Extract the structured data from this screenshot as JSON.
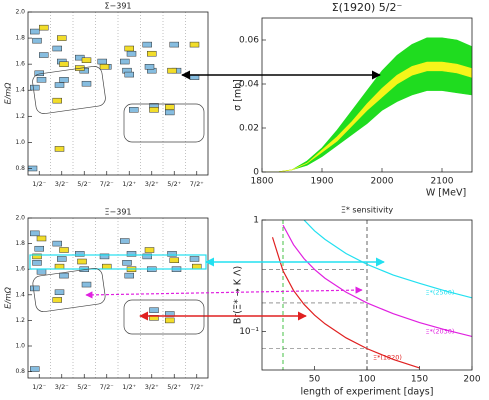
{
  "chart_data": [
    {
      "type": "scatter",
      "title": "Σ−391",
      "y_label": "E/mΩ",
      "xlim": [
        0,
        8
      ],
      "ylim": [
        0.75,
        2.0
      ],
      "xticks": [
        {
          "value": 0.5,
          "label": "1/2⁻"
        },
        {
          "value": 1.5,
          "label": "3/2⁻"
        },
        {
          "value": 2.5,
          "label": "5/2⁻"
        },
        {
          "value": 3.5,
          "label": "7/2⁻"
        },
        {
          "value": 4.5,
          "label": "1/2⁺"
        },
        {
          "value": 5.5,
          "label": "3/2⁺"
        },
        {
          "value": 6.5,
          "label": "5/2⁺"
        },
        {
          "value": 7.5,
          "label": "7/2⁺"
        }
      ],
      "yticks": [
        {
          "value": 0.8,
          "label": "0.8"
        },
        {
          "value": 1.0,
          "label": "1.0"
        },
        {
          "value": 1.2,
          "label": "1.2"
        },
        {
          "value": 1.4,
          "label": "1.4"
        },
        {
          "value": 1.6,
          "label": "1.6"
        },
        {
          "value": 1.8,
          "label": "1.8"
        },
        {
          "value": 2.0,
          "label": "2.0"
        }
      ],
      "series": [
        {
          "color": "#86bde0",
          "x": [
            0.3,
            0.4,
            0.5,
            0.6,
            0.3,
            0.7,
            1.3,
            1.5,
            1.6,
            1.4,
            2.3,
            2.5,
            2.6,
            3.3,
            3.5,
            4.3,
            4.4,
            4.5,
            4.6,
            4.7,
            5.3,
            5.5,
            5.6,
            5.4,
            6.5,
            6.3,
            6.6,
            7.4,
            0.2
          ],
          "values": [
            1.85,
            1.78,
            1.53,
            1.48,
            1.42,
            1.67,
            1.72,
            1.62,
            1.48,
            1.44,
            1.65,
            1.55,
            1.45,
            1.62,
            1.58,
            1.62,
            1.55,
            1.52,
            1.68,
            1.25,
            1.75,
            1.55,
            1.28,
            1.58,
            1.75,
            1.23,
            1.55,
            1.5,
            0.8
          ]
        },
        {
          "color": "#f2dd2a",
          "x": [
            0.7,
            1.5,
            1.6,
            2.3,
            2.6,
            1.3,
            1.4,
            3.4,
            4.5,
            5.5,
            5.6,
            6.4,
            7.4,
            6.3
          ],
          "values": [
            1.88,
            1.8,
            1.6,
            1.57,
            1.63,
            1.32,
            0.95,
            1.58,
            1.72,
            1.68,
            1.25,
            1.55,
            1.75,
            1.27
          ]
        }
      ]
    },
    {
      "type": "area",
      "title": "Σ(1920) 5/2⁻",
      "x_label": "W [MeV]",
      "y_label": "σ [mb]",
      "xlim": [
        1800,
        2150
      ],
      "ylim": [
        0,
        0.07
      ],
      "xticks": [
        1800,
        1900,
        2000,
        2100
      ],
      "yticks": [
        0,
        0.02,
        0.04,
        0.06
      ],
      "x": [
        1800,
        1825,
        1850,
        1875,
        1900,
        1925,
        1950,
        1975,
        2000,
        2025,
        2050,
        2075,
        2100,
        2125,
        2150
      ],
      "bands": [
        {
          "color": "#1fdc1f",
          "upper": [
            0,
            0,
            0.001,
            0.005,
            0.011,
            0.019,
            0.028,
            0.037,
            0.046,
            0.053,
            0.058,
            0.061,
            0.061,
            0.06,
            0.057
          ],
          "lower": [
            0,
            0,
            0.001,
            0.003,
            0.007,
            0.012,
            0.017,
            0.022,
            0.028,
            0.032,
            0.035,
            0.037,
            0.037,
            0.036,
            0.035
          ]
        },
        {
          "color": "#f5f51a",
          "upper": [
            0,
            0,
            0.001,
            0.004,
            0.01,
            0.016,
            0.023,
            0.031,
            0.038,
            0.044,
            0.048,
            0.05,
            0.05,
            0.049,
            0.047
          ],
          "lower": [
            0,
            0,
            0.001,
            0.004,
            0.009,
            0.014,
            0.021,
            0.028,
            0.034,
            0.04,
            0.044,
            0.046,
            0.046,
            0.045,
            0.043
          ]
        }
      ]
    },
    {
      "type": "scatter",
      "title": "Ξ−391",
      "y_label": "E/mΩ",
      "xlim": [
        0,
        8
      ],
      "ylim": [
        0.75,
        2.0
      ],
      "xticks": [
        {
          "value": 0.5,
          "label": "1/2⁻"
        },
        {
          "value": 1.5,
          "label": "3/2⁻"
        },
        {
          "value": 2.5,
          "label": "5/2⁻"
        },
        {
          "value": 3.5,
          "label": "7/2⁻"
        },
        {
          "value": 4.5,
          "label": "1/2⁺"
        },
        {
          "value": 5.5,
          "label": "3/2⁺"
        },
        {
          "value": 6.5,
          "label": "5/2⁺"
        },
        {
          "value": 7.5,
          "label": "7/2⁺"
        }
      ],
      "yticks": [
        {
          "value": 0.8,
          "label": "0.8"
        },
        {
          "value": 1.0,
          "label": "1.0"
        },
        {
          "value": 1.2,
          "label": "1.2"
        },
        {
          "value": 1.4,
          "label": "1.4"
        },
        {
          "value": 1.6,
          "label": "1.6"
        },
        {
          "value": 1.8,
          "label": "1.8"
        },
        {
          "value": 2.0,
          "label": "2.0"
        }
      ],
      "series": [
        {
          "color": "#86bde0",
          "x": [
            0.3,
            0.5,
            0.4,
            0.6,
            0.3,
            1.3,
            1.5,
            1.6,
            1.4,
            2.3,
            2.5,
            2.6,
            3.4,
            4.3,
            4.4,
            4.6,
            4.5,
            5.3,
            5.5,
            5.6,
            6.4,
            6.6,
            6.3,
            7.4,
            0.3
          ],
          "values": [
            1.88,
            1.76,
            1.65,
            1.58,
            1.45,
            1.8,
            1.68,
            1.55,
            1.42,
            1.72,
            1.6,
            1.48,
            1.7,
            1.82,
            1.65,
            1.72,
            1.55,
            1.7,
            1.6,
            1.28,
            1.72,
            1.6,
            1.25,
            1.68,
            0.82
          ]
        },
        {
          "color": "#f2dd2a",
          "x": [
            0.6,
            0.4,
            1.4,
            1.6,
            2.4,
            1.3,
            3.5,
            4.6,
            5.4,
            5.6,
            6.5,
            7.5,
            6.3
          ],
          "values": [
            1.84,
            1.7,
            1.62,
            1.75,
            1.66,
            1.36,
            1.62,
            1.6,
            1.75,
            1.22,
            1.67,
            1.62,
            1.2
          ]
        }
      ]
    },
    {
      "type": "line",
      "title": "Ξ* sensitivity",
      "x_label": "length of experiment [days]",
      "y_label": "Br(Ξ* → K Λ)",
      "log_y": true,
      "xlim": [
        0,
        200
      ],
      "ylim": [
        0.045,
        1
      ],
      "xticks": [
        50,
        100,
        150,
        200
      ],
      "yticks": [
        {
          "value": 0.1,
          "label": "10⁻¹"
        },
        1
      ],
      "x": [
        10,
        20,
        30,
        40,
        50,
        60,
        80,
        100,
        125,
        150,
        175,
        200
      ],
      "series": [
        {
          "name": "Ξ*(2500)",
          "color": "#22e0f0",
          "values": [
            null,
            null,
            null,
            1.0,
            0.8,
            0.67,
            0.5,
            0.4,
            0.32,
            0.27,
            0.23,
            0.2
          ]
        },
        {
          "name": "Ξ*(2030)",
          "color": "#e020e0",
          "values": [
            null,
            0.9,
            0.6,
            0.45,
            0.36,
            0.3,
            0.225,
            0.18,
            0.144,
            0.12,
            0.103,
            0.09
          ]
        },
        {
          "name": "Ξ*(1820)",
          "color": "#e02020",
          "values": [
            0.7,
            0.35,
            0.233,
            0.175,
            0.14,
            0.117,
            0.0875,
            0.07,
            0.056,
            0.047,
            null,
            null
          ]
        }
      ],
      "vlines": [
        {
          "x": 20,
          "color": "#33bb33"
        },
        {
          "x": 100,
          "color": "#555555"
        }
      ],
      "hlines": [
        0.36,
        0.18,
        0.07
      ]
    }
  ]
}
